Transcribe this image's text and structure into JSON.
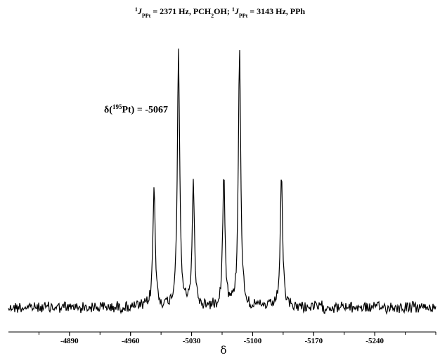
{
  "chart_data": {
    "type": "line",
    "title": {
      "j1_prefix": "1",
      "j1_symbol": "J",
      "j1_subscript": "PPt",
      "j1_rest": " = 2371 Hz, PCH",
      "j1_sub2": "2",
      "j1_tail": "OH;  ",
      "j2_prefix": "1",
      "j2_symbol": "J",
      "j2_subscript": "PPt",
      "j2_rest": " = 3143 Hz, PPh"
    },
    "annotation": {
      "delta": "δ",
      "open": "(",
      "isotope": "195",
      "element": "Pt",
      "close": ")",
      "value": " = -5067"
    },
    "xlabel": "δ",
    "xlim": [
      -4820,
      -5310
    ],
    "ylim": [
      0,
      1.0
    ],
    "x_ticks": [
      -4890,
      -4960,
      -5030,
      -5100,
      -5170,
      -5240
    ],
    "x_tick_labels": [
      "-4890",
      "-4960",
      "-5030",
      "-5100",
      "-5170",
      "-5240"
    ],
    "peaks": [
      {
        "x": -4987,
        "height": 0.47
      },
      {
        "x": -5015,
        "height": 1.0
      },
      {
        "x": -5032,
        "height": 0.48
      },
      {
        "x": -5067,
        "height": 0.52
      },
      {
        "x": -5085,
        "height": 1.02
      },
      {
        "x": -5133,
        "height": 0.51
      }
    ],
    "noise_amplitude": 0.02
  }
}
